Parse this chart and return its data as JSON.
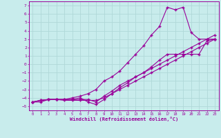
{
  "xlabel": "Windchill (Refroidissement éolien,°C)",
  "bg_color": "#c8ecec",
  "grid_color": "#b0d8d8",
  "line_color": "#990099",
  "xlim": [
    -0.5,
    23.5
  ],
  "ylim": [
    -5.5,
    7.5
  ],
  "xticks": [
    0,
    1,
    2,
    3,
    4,
    5,
    6,
    7,
    8,
    9,
    10,
    11,
    12,
    13,
    14,
    15,
    16,
    17,
    18,
    19,
    20,
    21,
    22,
    23
  ],
  "yticks": [
    -5,
    -4,
    -3,
    -2,
    -1,
    0,
    1,
    2,
    3,
    4,
    5,
    6,
    7
  ],
  "line1_x": [
    0,
    1,
    2,
    3,
    4,
    5,
    6,
    7,
    8,
    9,
    10,
    11,
    12,
    13,
    14,
    15,
    16,
    17,
    18,
    19,
    20,
    21,
    22,
    23
  ],
  "line1_y": [
    -4.5,
    -4.5,
    -4.2,
    -4.2,
    -4.2,
    -4.0,
    -3.8,
    -3.5,
    -3.0,
    -2.0,
    -1.5,
    -0.8,
    0.2,
    1.2,
    2.2,
    3.5,
    4.5,
    6.8,
    6.5,
    6.8,
    3.8,
    3.0,
    3.0,
    3.0
  ],
  "line2_x": [
    0,
    1,
    2,
    3,
    4,
    5,
    6,
    7,
    8,
    9,
    10,
    11,
    12,
    13,
    14,
    15,
    16,
    17,
    18,
    19,
    20,
    21,
    22,
    23
  ],
  "line2_y": [
    -4.5,
    -4.3,
    -4.2,
    -4.2,
    -4.2,
    -4.2,
    -4.0,
    -4.5,
    -4.8,
    -4.2,
    -3.5,
    -2.8,
    -2.2,
    -1.5,
    -1.0,
    -0.3,
    0.5,
    1.2,
    1.2,
    1.2,
    1.2,
    1.2,
    2.8,
    3.0
  ],
  "line3_x": [
    0,
    1,
    2,
    3,
    4,
    5,
    6,
    7,
    8,
    9,
    10,
    11,
    12,
    13,
    14,
    15,
    16,
    17,
    18,
    19,
    20,
    21,
    22,
    23
  ],
  "line3_y": [
    -4.5,
    -4.3,
    -4.2,
    -4.2,
    -4.3,
    -4.3,
    -4.3,
    -4.3,
    -4.3,
    -4.0,
    -3.5,
    -3.0,
    -2.5,
    -2.0,
    -1.5,
    -1.0,
    -0.5,
    0.0,
    0.5,
    1.0,
    1.5,
    2.0,
    2.5,
    3.0
  ],
  "line4_x": [
    0,
    1,
    2,
    3,
    4,
    5,
    6,
    7,
    8,
    9,
    10,
    11,
    12,
    13,
    14,
    15,
    16,
    17,
    18,
    19,
    20,
    21,
    22,
    23
  ],
  "line4_y": [
    -4.5,
    -4.3,
    -4.2,
    -4.2,
    -4.2,
    -4.2,
    -4.2,
    -4.2,
    -4.5,
    -3.8,
    -3.2,
    -2.5,
    -2.0,
    -1.5,
    -1.0,
    -0.5,
    0.0,
    0.5,
    1.0,
    1.5,
    2.0,
    2.5,
    3.0,
    3.5
  ]
}
